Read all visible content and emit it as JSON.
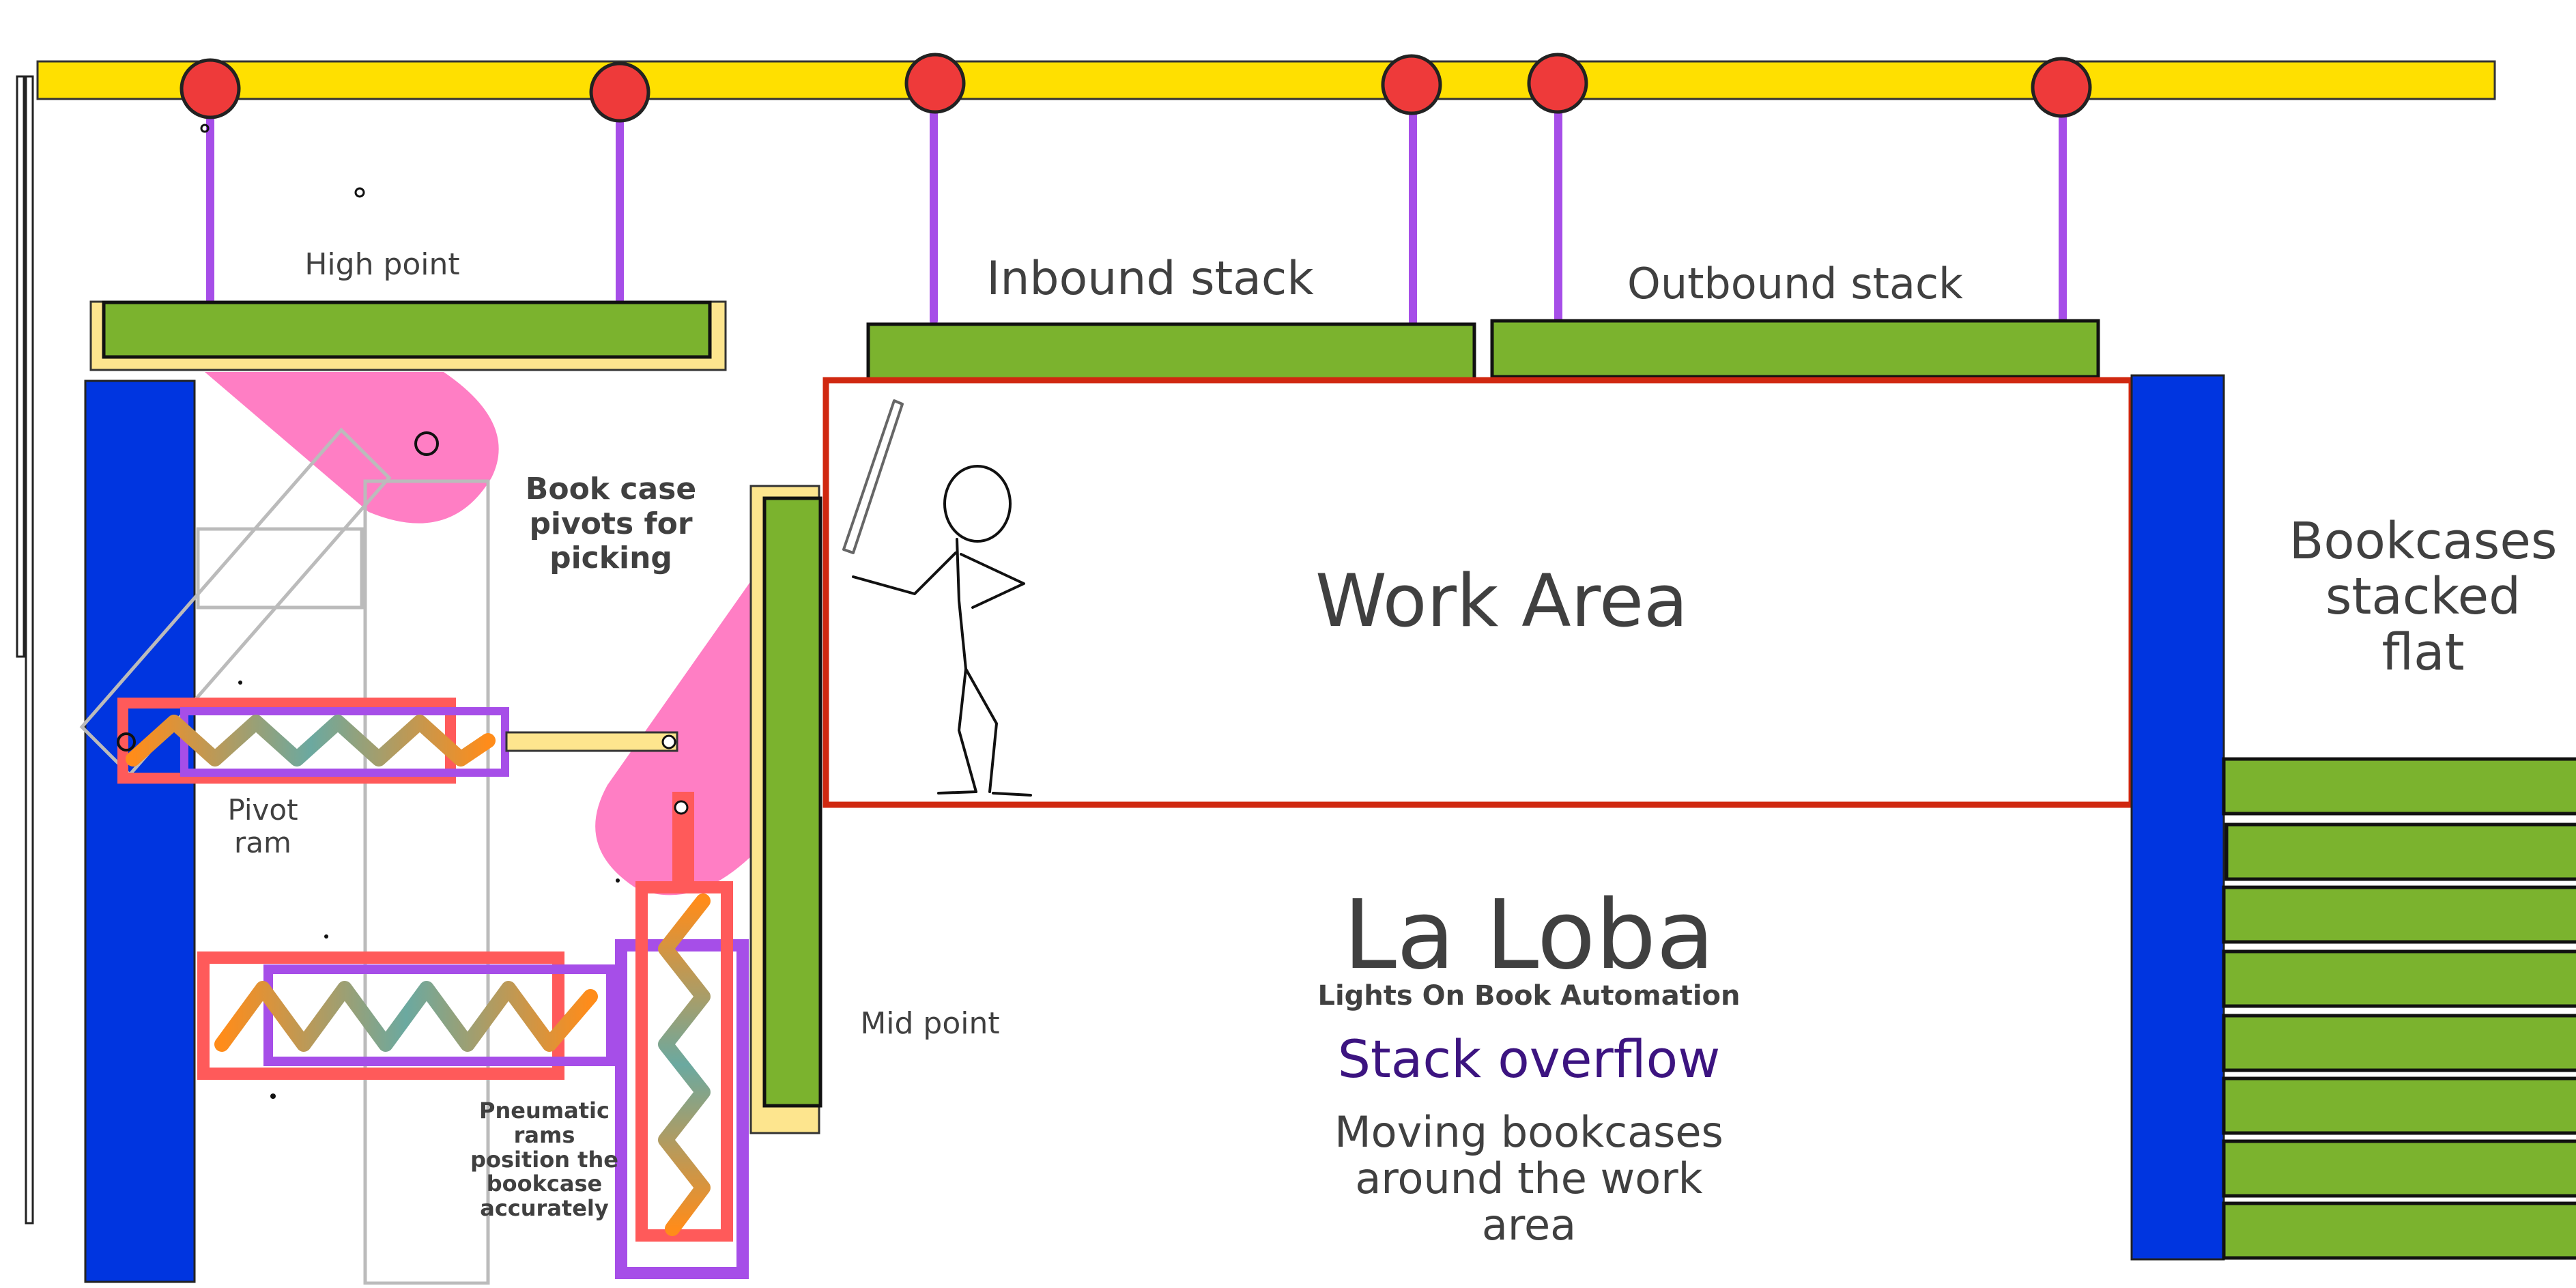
{
  "labels": {
    "high_point": "High point",
    "inbound_stack": "Inbound stack",
    "outbound_stack": "Outbound stack",
    "pivot_caption_1": "Book case",
    "pivot_caption_2": "pivots for",
    "pivot_caption_3": "picking",
    "work_area": "Work Area",
    "bookcases_flat_1": "Bookcases",
    "bookcases_flat_2": "stacked",
    "bookcases_flat_3": "flat",
    "pivot_ram_1": "Pivot",
    "pivot_ram_2": "ram",
    "mid_point": "Mid point",
    "pneumatic_1": "Pneumatic",
    "pneumatic_2": "rams",
    "pneumatic_3": "position the",
    "pneumatic_4": "bookcase",
    "pneumatic_5": "accurately"
  },
  "branding": {
    "title": "La Loba",
    "subtitle": "Lights On Book Automation",
    "tagline": "Stack overflow",
    "desc_1": "Moving bookcases",
    "desc_2": "around the work",
    "desc_3": "area"
  },
  "colors": {
    "rail": "#FFE000",
    "trolley": "#EE3A3A",
    "cable": "#A64EE8",
    "bookcase": "#7BB32E",
    "highlight": "#FDE58E",
    "upright": "#0035E0",
    "work_area_border": "#D02810",
    "pivot_zone": "#FF7EC4",
    "ram_outer": "#FF5A5A",
    "ram_inner": "#A64EE8",
    "spring_a": "#FF8C1A",
    "spring_b": "#6BA9A0",
    "tagline": "#3C1480",
    "text": "#404040"
  }
}
